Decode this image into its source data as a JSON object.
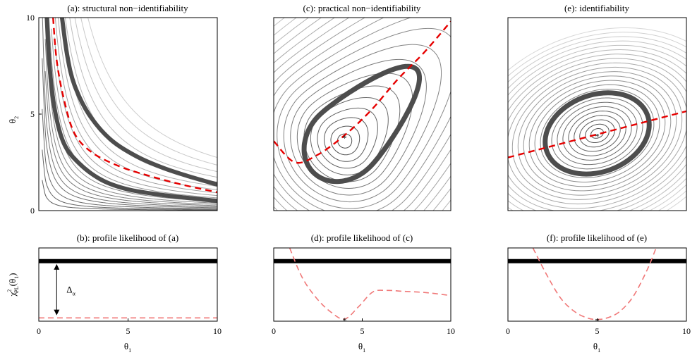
{
  "chart_data": [
    {
      "panel": "a",
      "type": "contour",
      "title": "(a): structural non−identifiability",
      "ylabel_main": "θ",
      "ylabel_sub": "2",
      "xlim": [
        0,
        10
      ],
      "ylim": [
        0,
        10
      ],
      "yticks": [
        {
          "v": 0,
          "label": "0"
        },
        {
          "v": 5,
          "label": "5"
        },
        {
          "v": 10,
          "label": "10"
        }
      ],
      "profile_path_points": [
        [
          0.8,
          10
        ],
        [
          1.0,
          7.8
        ],
        [
          1.4,
          5.8
        ],
        [
          2.0,
          4.0
        ],
        [
          3.0,
          3.0
        ],
        [
          4.5,
          2.3
        ],
        [
          6.0,
          1.85
        ],
        [
          8.0,
          1.35
        ],
        [
          10,
          0.95
        ]
      ],
      "threshold_inner_points": [
        [
          0.45,
          10
        ],
        [
          0.6,
          7.5
        ],
        [
          0.9,
          5.2
        ],
        [
          1.4,
          3.5
        ],
        [
          2.2,
          2.5
        ],
        [
          3.5,
          1.6
        ],
        [
          5,
          1.1
        ],
        [
          7,
          0.8
        ],
        [
          10,
          0.5
        ]
      ],
      "threshold_outer_points": [
        [
          1.3,
          10
        ],
        [
          1.6,
          8
        ],
        [
          2.0,
          6.5
        ],
        [
          2.8,
          5.0
        ],
        [
          4.0,
          3.7
        ],
        [
          5.5,
          2.8
        ],
        [
          7,
          2.2
        ],
        [
          8.5,
          1.75
        ],
        [
          10,
          1.35
        ]
      ],
      "line_color": "#333333",
      "threshold_color": "#4d4d4d",
      "profile_color": "#e60000"
    },
    {
      "panel": "c",
      "type": "contour",
      "title": "(c): practical non−identifiability",
      "xlim": [
        0,
        10
      ],
      "ylim": [
        0,
        10
      ],
      "optimum": {
        "x": 4.0,
        "y": 3.9
      },
      "profile_path_points": [
        [
          0,
          3.6
        ],
        [
          1.2,
          2.5
        ],
        [
          2.5,
          2.9
        ],
        [
          4.0,
          3.9
        ],
        [
          5.5,
          5.2
        ],
        [
          7.0,
          6.8
        ],
        [
          8.5,
          8.2
        ],
        [
          10,
          9.8
        ]
      ],
      "threshold_ellipse": {
        "cx": 4.0,
        "cy": 3.6,
        "rx": 2.5,
        "ry": 2.5,
        "tilt_deg": 45
      },
      "line_color": "#333333",
      "threshold_color": "#4d4d4d",
      "profile_color": "#e60000"
    },
    {
      "panel": "e",
      "type": "contour",
      "title": "(e): identifiability",
      "xlim": [
        0,
        10
      ],
      "ylim": [
        0,
        10
      ],
      "optimum": {
        "x": 5.0,
        "y": 4.0
      },
      "profile_path_points": [
        [
          0,
          2.75
        ],
        [
          10,
          5.15
        ]
      ],
      "threshold_ellipse": {
        "cx": 5.0,
        "cy": 4.0,
        "rx": 3.0,
        "ry": 2.0,
        "tilt_deg": 20
      },
      "line_color": "#333333",
      "threshold_color": "#4d4d4d",
      "profile_color": "#e60000"
    },
    {
      "panel": "b",
      "type": "line",
      "title": "(b): profile likelihood of (a)",
      "ylabel_main": "χ",
      "ylabel_sup": "2",
      "ylabel_sub": "PL",
      "ylabel_arg_main": "(θ",
      "ylabel_arg_sub": "1",
      "ylabel_close": ")",
      "xlabel_main": "θ",
      "xlabel_sub": "1",
      "xlim": [
        0,
        10
      ],
      "ylim": [
        0,
        1
      ],
      "xticks": [
        {
          "v": 0,
          "label": "0"
        },
        {
          "v": 5,
          "label": "5"
        },
        {
          "v": 10,
          "label": "10"
        }
      ],
      "threshold": 0.82,
      "profile_points": [
        [
          0,
          0.045
        ],
        [
          10,
          0.045
        ]
      ],
      "delta_label_main": "Δ",
      "delta_label_sub": "α",
      "delta_arrow": {
        "x": 1.0,
        "y_from": 0.08,
        "y_to": 0.78
      },
      "profile_color": "#f07878"
    },
    {
      "panel": "d",
      "type": "line",
      "title": "(d): profile likelihood of (c)",
      "xlabel_main": "θ",
      "xlabel_sub": "1",
      "xlim": [
        0,
        10
      ],
      "ylim": [
        0,
        1
      ],
      "xticks": [
        {
          "v": 0,
          "label": "0"
        },
        {
          "v": 5,
          "label": "5"
        },
        {
          "v": 10,
          "label": "10"
        }
      ],
      "threshold": 0.82,
      "profile_points": [
        [
          0.9,
          1.0
        ],
        [
          1.6,
          0.6
        ],
        [
          2.4,
          0.32
        ],
        [
          3.2,
          0.13
        ],
        [
          4.0,
          0.03
        ],
        [
          4.8,
          0.2
        ],
        [
          5.6,
          0.4
        ],
        [
          6.4,
          0.42
        ],
        [
          7.2,
          0.41
        ],
        [
          8.6,
          0.39
        ],
        [
          10,
          0.35
        ]
      ],
      "optimum": {
        "x": 4.0,
        "y": 0.03
      },
      "profile_color": "#f07878"
    },
    {
      "panel": "f",
      "type": "line",
      "title": "(f): profile likelihood of (e)",
      "xlabel_main": "θ",
      "xlabel_sub": "1",
      "xlim": [
        0,
        10
      ],
      "ylim": [
        0,
        1
      ],
      "xticks": [
        {
          "v": 0,
          "label": "0"
        },
        {
          "v": 5,
          "label": "5"
        },
        {
          "v": 10,
          "label": "10"
        }
      ],
      "threshold": 0.82,
      "profile_points": [
        [
          1.4,
          1.0
        ],
        [
          2.2,
          0.62
        ],
        [
          3.0,
          0.3
        ],
        [
          3.8,
          0.12
        ],
        [
          4.5,
          0.04
        ],
        [
          5.0,
          0.025
        ],
        [
          5.5,
          0.04
        ],
        [
          6.2,
          0.12
        ],
        [
          7.0,
          0.33
        ],
        [
          7.8,
          0.7
        ],
        [
          8.3,
          1.0
        ]
      ],
      "optimum": {
        "x": 5.0,
        "y": 0.025
      },
      "profile_color": "#f07878"
    }
  ]
}
